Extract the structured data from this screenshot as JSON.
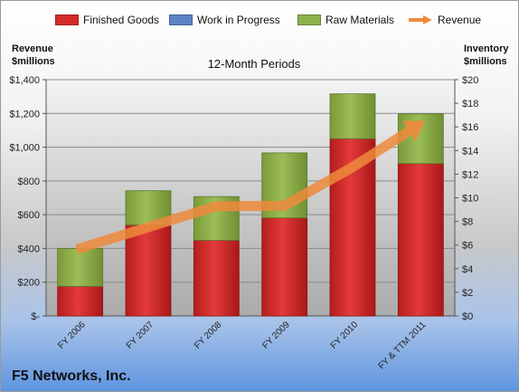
{
  "chart_data": {
    "type": "bar",
    "stacked": true,
    "title": "12-Month Periods",
    "categories": [
      "FY 2006",
      "FY 2007",
      "FY 2008",
      "FY 2009",
      "FY 2010",
      "FY & TTM 2011"
    ],
    "series": [
      {
        "name": "Finished Goods",
        "axis": "right",
        "color": "#d42a2a",
        "values": [
          2.5,
          7.7,
          6.4,
          8.3,
          15.0,
          12.9
        ]
      },
      {
        "name": "Work in Progress",
        "axis": "right",
        "color": "#5b84c4",
        "values": [
          0,
          0,
          0,
          0,
          0,
          0
        ]
      },
      {
        "name": "Raw Materials",
        "axis": "right",
        "color": "#8cb04a",
        "values": [
          3.2,
          2.9,
          3.7,
          5.5,
          3.8,
          4.2
        ]
      },
      {
        "name": "Revenue",
        "axis": "left",
        "type": "line",
        "color": "#ee8a3c",
        "values": [
          395,
          526,
          650,
          653,
          882,
          1140
        ]
      }
    ],
    "y_left": {
      "label_line1": "Revenue",
      "label_line2": "$millions",
      "ylim": [
        0,
        1400
      ],
      "ticks": [
        "$-",
        "$200",
        "$400",
        "$600",
        "$800",
        "$1,000",
        "$1,200",
        "$1,400"
      ]
    },
    "y_right": {
      "label_line1": "Inventory",
      "label_line2": "$millions",
      "ylim": [
        0,
        20
      ],
      "ticks": [
        "$0",
        "$2",
        "$4",
        "$6",
        "$8",
        "$10",
        "$12",
        "$14",
        "$16",
        "$18",
        "$20"
      ]
    },
    "grid": true,
    "legend_position": "top"
  },
  "footer": {
    "company": "F5 Networks, Inc."
  }
}
